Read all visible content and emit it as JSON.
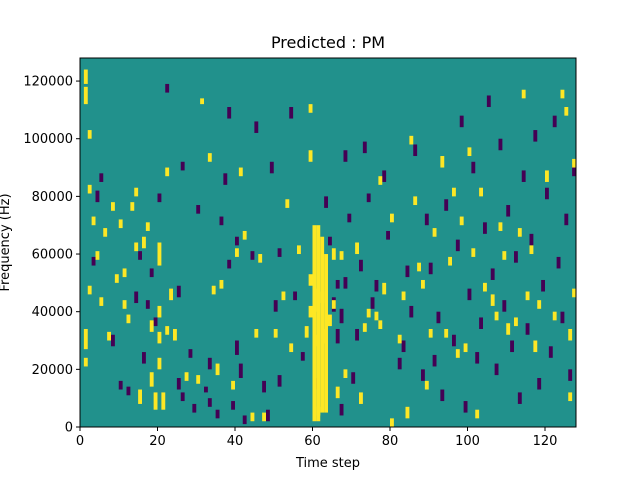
{
  "chart_data": {
    "type": "heatmap",
    "title": "Predicted : PM",
    "xlabel": "Time step",
    "ylabel": "Frequency (Hz)",
    "xlim": [
      0,
      128
    ],
    "ylim": [
      0,
      128000
    ],
    "x_ticks": [
      0,
      20,
      40,
      60,
      80,
      100,
      120
    ],
    "x_tick_labels": [
      "0",
      "20",
      "40",
      "60",
      "80",
      "100",
      "120"
    ],
    "y_ticks": [
      0,
      20000,
      40000,
      60000,
      80000,
      100000,
      120000
    ],
    "y_tick_labels": [
      "0",
      "20000",
      "40000",
      "60000",
      "80000",
      "100000",
      "120000"
    ],
    "value_range": [
      -1,
      1
    ],
    "colors": {
      "background": "#21918c",
      "high": "#fde725",
      "low": "#440154"
    },
    "high_cells": [
      [
        1,
        21000,
        24000
      ],
      [
        1,
        27000,
        34000
      ],
      [
        1,
        112000,
        118000
      ],
      [
        1,
        119000,
        124000
      ],
      [
        2,
        46000,
        49000
      ],
      [
        2,
        81000,
        84000
      ],
      [
        2,
        100000,
        103000
      ],
      [
        3,
        70000,
        73000
      ],
      [
        4,
        58000,
        61000
      ],
      [
        5,
        42000,
        45000
      ],
      [
        6,
        66000,
        69000
      ],
      [
        7,
        30000,
        33000
      ],
      [
        8,
        75000,
        78000
      ],
      [
        9,
        50000,
        53000
      ],
      [
        10,
        69000,
        72000
      ],
      [
        11,
        41000,
        44000
      ],
      [
        11,
        52000,
        55000
      ],
      [
        12,
        36000,
        39000
      ],
      [
        13,
        75000,
        78000
      ],
      [
        14,
        61000,
        64000
      ],
      [
        14,
        80000,
        83000
      ],
      [
        15,
        8000,
        13000
      ],
      [
        16,
        62000,
        66000
      ],
      [
        17,
        68000,
        71000
      ],
      [
        18,
        14000,
        19000
      ],
      [
        18,
        33000,
        37000
      ],
      [
        19,
        6000,
        12000
      ],
      [
        20,
        20000,
        24000
      ],
      [
        20,
        29000,
        33000
      ],
      [
        20,
        38000,
        42000
      ],
      [
        20,
        56000,
        64000
      ],
      [
        21,
        6000,
        12000
      ],
      [
        22,
        32000,
        35000
      ],
      [
        22,
        87000,
        90000
      ],
      [
        23,
        44000,
        48000
      ],
      [
        24,
        30000,
        34000
      ],
      [
        27,
        16000,
        19000
      ],
      [
        30,
        15000,
        18000
      ],
      [
        31,
        112000,
        114000
      ],
      [
        33,
        92000,
        95000
      ],
      [
        34,
        46000,
        49000
      ],
      [
        35,
        18000,
        22000
      ],
      [
        36,
        48000,
        51000
      ],
      [
        39,
        13000,
        16000
      ],
      [
        40,
        59000,
        62000
      ],
      [
        41,
        87000,
        90000
      ],
      [
        42,
        65000,
        68000
      ],
      [
        44,
        2000,
        5000
      ],
      [
        45,
        31000,
        34000
      ],
      [
        46,
        57000,
        60000
      ],
      [
        47,
        2000,
        5000
      ],
      [
        50,
        31000,
        34000
      ],
      [
        52,
        44000,
        47000
      ],
      [
        53,
        76000,
        79000
      ],
      [
        54,
        26000,
        29000
      ],
      [
        56,
        60000,
        63000
      ],
      [
        58,
        31000,
        35000
      ],
      [
        59,
        38000,
        42000
      ],
      [
        59,
        49000,
        53000
      ],
      [
        59,
        92000,
        96000
      ],
      [
        59,
        109000,
        112000
      ],
      [
        60,
        40000,
        48000
      ],
      [
        60,
        28000,
        32000
      ],
      [
        61,
        4000,
        7000
      ],
      [
        62,
        43000,
        47000
      ],
      [
        63,
        29000,
        34000
      ],
      [
        64,
        35000,
        39000
      ],
      [
        65,
        41000,
        44000
      ],
      [
        65,
        58000,
        62000
      ],
      [
        66,
        10000,
        14000
      ],
      [
        67,
        58000,
        61000
      ],
      [
        68,
        17000,
        20000
      ],
      [
        71,
        60000,
        64000
      ],
      [
        72,
        8000,
        12000
      ],
      [
        73,
        33000,
        36000
      ],
      [
        74,
        38000,
        41000
      ],
      [
        76,
        37000,
        40000
      ],
      [
        77,
        34000,
        37000
      ],
      [
        77,
        84000,
        87000
      ],
      [
        78,
        46000,
        50000
      ],
      [
        80,
        0,
        3000
      ],
      [
        80,
        71000,
        74000
      ],
      [
        82,
        29000,
        32000
      ],
      [
        83,
        44000,
        47000
      ],
      [
        84,
        3000,
        7000
      ],
      [
        85,
        98000,
        101000
      ],
      [
        86,
        77000,
        80000
      ],
      [
        87,
        54000,
        57000
      ],
      [
        88,
        48000,
        51000
      ],
      [
        89,
        13000,
        16000
      ],
      [
        90,
        31000,
        34000
      ],
      [
        91,
        66000,
        69000
      ],
      [
        93,
        90000,
        94000
      ],
      [
        94,
        31000,
        34000
      ],
      [
        95,
        56000,
        59000
      ],
      [
        96,
        80000,
        83000
      ],
      [
        97,
        24000,
        27000
      ],
      [
        98,
        70000,
        73000
      ],
      [
        99,
        26000,
        29000
      ],
      [
        100,
        94000,
        97000
      ],
      [
        101,
        59000,
        62000
      ],
      [
        102,
        3000,
        6000
      ],
      [
        103,
        80000,
        83000
      ],
      [
        104,
        47000,
        50000
      ],
      [
        106,
        42000,
        46000
      ],
      [
        107,
        37000,
        40000
      ],
      [
        108,
        68000,
        71000
      ],
      [
        109,
        58000,
        61000
      ],
      [
        110,
        32000,
        36000
      ],
      [
        112,
        35000,
        38000
      ],
      [
        113,
        66000,
        69000
      ],
      [
        114,
        114000,
        117000
      ],
      [
        115,
        44000,
        47000
      ],
      [
        116,
        60000,
        63000
      ],
      [
        117,
        26000,
        30000
      ],
      [
        118,
        41000,
        44000
      ],
      [
        120,
        85000,
        89000
      ],
      [
        122,
        37000,
        40000
      ],
      [
        124,
        114000,
        117000
      ],
      [
        125,
        108000,
        111000
      ],
      [
        126,
        30000,
        34000
      ],
      [
        126,
        9000,
        12000
      ],
      [
        127,
        45000,
        48000
      ],
      [
        127,
        90000,
        93000
      ]
    ],
    "high_band": [
      [
        60,
        2000,
        70000
      ],
      [
        61,
        2000,
        70000
      ],
      [
        62,
        5000,
        66000
      ],
      [
        63,
        5000,
        60000
      ]
    ],
    "low_cells": [
      [
        3,
        56000,
        59000
      ],
      [
        4,
        78000,
        82000
      ],
      [
        5,
        85000,
        88000
      ],
      [
        8,
        28000,
        32000
      ],
      [
        10,
        13000,
        16000
      ],
      [
        12,
        11000,
        14000
      ],
      [
        14,
        43000,
        47000
      ],
      [
        15,
        58000,
        61000
      ],
      [
        16,
        22000,
        26000
      ],
      [
        17,
        41000,
        44000
      ],
      [
        18,
        52000,
        55000
      ],
      [
        19,
        35000,
        38000
      ],
      [
        20,
        78000,
        81000
      ],
      [
        22,
        116000,
        119000
      ],
      [
        25,
        13000,
        17000
      ],
      [
        25,
        45000,
        49000
      ],
      [
        26,
        9000,
        12000
      ],
      [
        26,
        89000,
        92000
      ],
      [
        28,
        24000,
        27000
      ],
      [
        29,
        5000,
        8000
      ],
      [
        30,
        74000,
        77000
      ],
      [
        32,
        12000,
        14000
      ],
      [
        33,
        20000,
        24000
      ],
      [
        33,
        7000,
        10000
      ],
      [
        35,
        3000,
        6000
      ],
      [
        36,
        70000,
        73000
      ],
      [
        37,
        84000,
        88000
      ],
      [
        38,
        55000,
        58000
      ],
      [
        38,
        107000,
        111000
      ],
      [
        39,
        6000,
        9000
      ],
      [
        40,
        63000,
        66000
      ],
      [
        40,
        25000,
        30000
      ],
      [
        41,
        17000,
        22000
      ],
      [
        42,
        1000,
        4000
      ],
      [
        44,
        58000,
        61000
      ],
      [
        45,
        102000,
        106000
      ],
      [
        47,
        12000,
        16000
      ],
      [
        48,
        2000,
        6000
      ],
      [
        49,
        88000,
        92000
      ],
      [
        50,
        40000,
        44000
      ],
      [
        51,
        59000,
        62000
      ],
      [
        51,
        14000,
        18000
      ],
      [
        54,
        107000,
        111000
      ],
      [
        55,
        44000,
        47000
      ],
      [
        57,
        23000,
        26000
      ],
      [
        60,
        13000,
        17000
      ],
      [
        63,
        76000,
        80000
      ],
      [
        64,
        63000,
        66000
      ],
      [
        65,
        40000,
        45000
      ],
      [
        66,
        29000,
        34000
      ],
      [
        66,
        48000,
        51000
      ],
      [
        67,
        4000,
        8000
      ],
      [
        67,
        36000,
        41000
      ],
      [
        68,
        48000,
        52000
      ],
      [
        68,
        92000,
        96000
      ],
      [
        69,
        71000,
        74000
      ],
      [
        70,
        15000,
        19000
      ],
      [
        71,
        30000,
        34000
      ],
      [
        72,
        54000,
        58000
      ],
      [
        73,
        95000,
        99000
      ],
      [
        74,
        78000,
        81000
      ],
      [
        75,
        41000,
        45000
      ],
      [
        76,
        47000,
        51000
      ],
      [
        78,
        85000,
        89000
      ],
      [
        79,
        65000,
        68000
      ],
      [
        82,
        20000,
        24000
      ],
      [
        83,
        26000,
        30000
      ],
      [
        84,
        52000,
        56000
      ],
      [
        85,
        38000,
        42000
      ],
      [
        86,
        94000,
        98000
      ],
      [
        88,
        16000,
        20000
      ],
      [
        89,
        70000,
        74000
      ],
      [
        90,
        53000,
        57000
      ],
      [
        91,
        21000,
        25000
      ],
      [
        92,
        36000,
        40000
      ],
      [
        93,
        9000,
        13000
      ],
      [
        94,
        75000,
        79000
      ],
      [
        96,
        28000,
        32000
      ],
      [
        97,
        61000,
        65000
      ],
      [
        98,
        104000,
        108000
      ],
      [
        99,
        5000,
        9000
      ],
      [
        100,
        44000,
        48000
      ],
      [
        101,
        88000,
        92000
      ],
      [
        102,
        22000,
        26000
      ],
      [
        103,
        34000,
        38000
      ],
      [
        104,
        67000,
        71000
      ],
      [
        105,
        111000,
        115000
      ],
      [
        106,
        51000,
        55000
      ],
      [
        107,
        18000,
        22000
      ],
      [
        108,
        96000,
        100000
      ],
      [
        109,
        40000,
        44000
      ],
      [
        110,
        73000,
        77000
      ],
      [
        111,
        26000,
        30000
      ],
      [
        112,
        57000,
        61000
      ],
      [
        113,
        8000,
        12000
      ],
      [
        114,
        85000,
        89000
      ],
      [
        115,
        32000,
        36000
      ],
      [
        116,
        63000,
        67000
      ],
      [
        117,
        99000,
        103000
      ],
      [
        118,
        13000,
        17000
      ],
      [
        119,
        47000,
        51000
      ],
      [
        120,
        79000,
        83000
      ],
      [
        121,
        24000,
        28000
      ],
      [
        122,
        104000,
        108000
      ],
      [
        123,
        55000,
        59000
      ],
      [
        124,
        36000,
        40000
      ],
      [
        125,
        70000,
        74000
      ],
      [
        126,
        16000,
        20000
      ],
      [
        127,
        87000,
        91000
      ]
    ]
  }
}
